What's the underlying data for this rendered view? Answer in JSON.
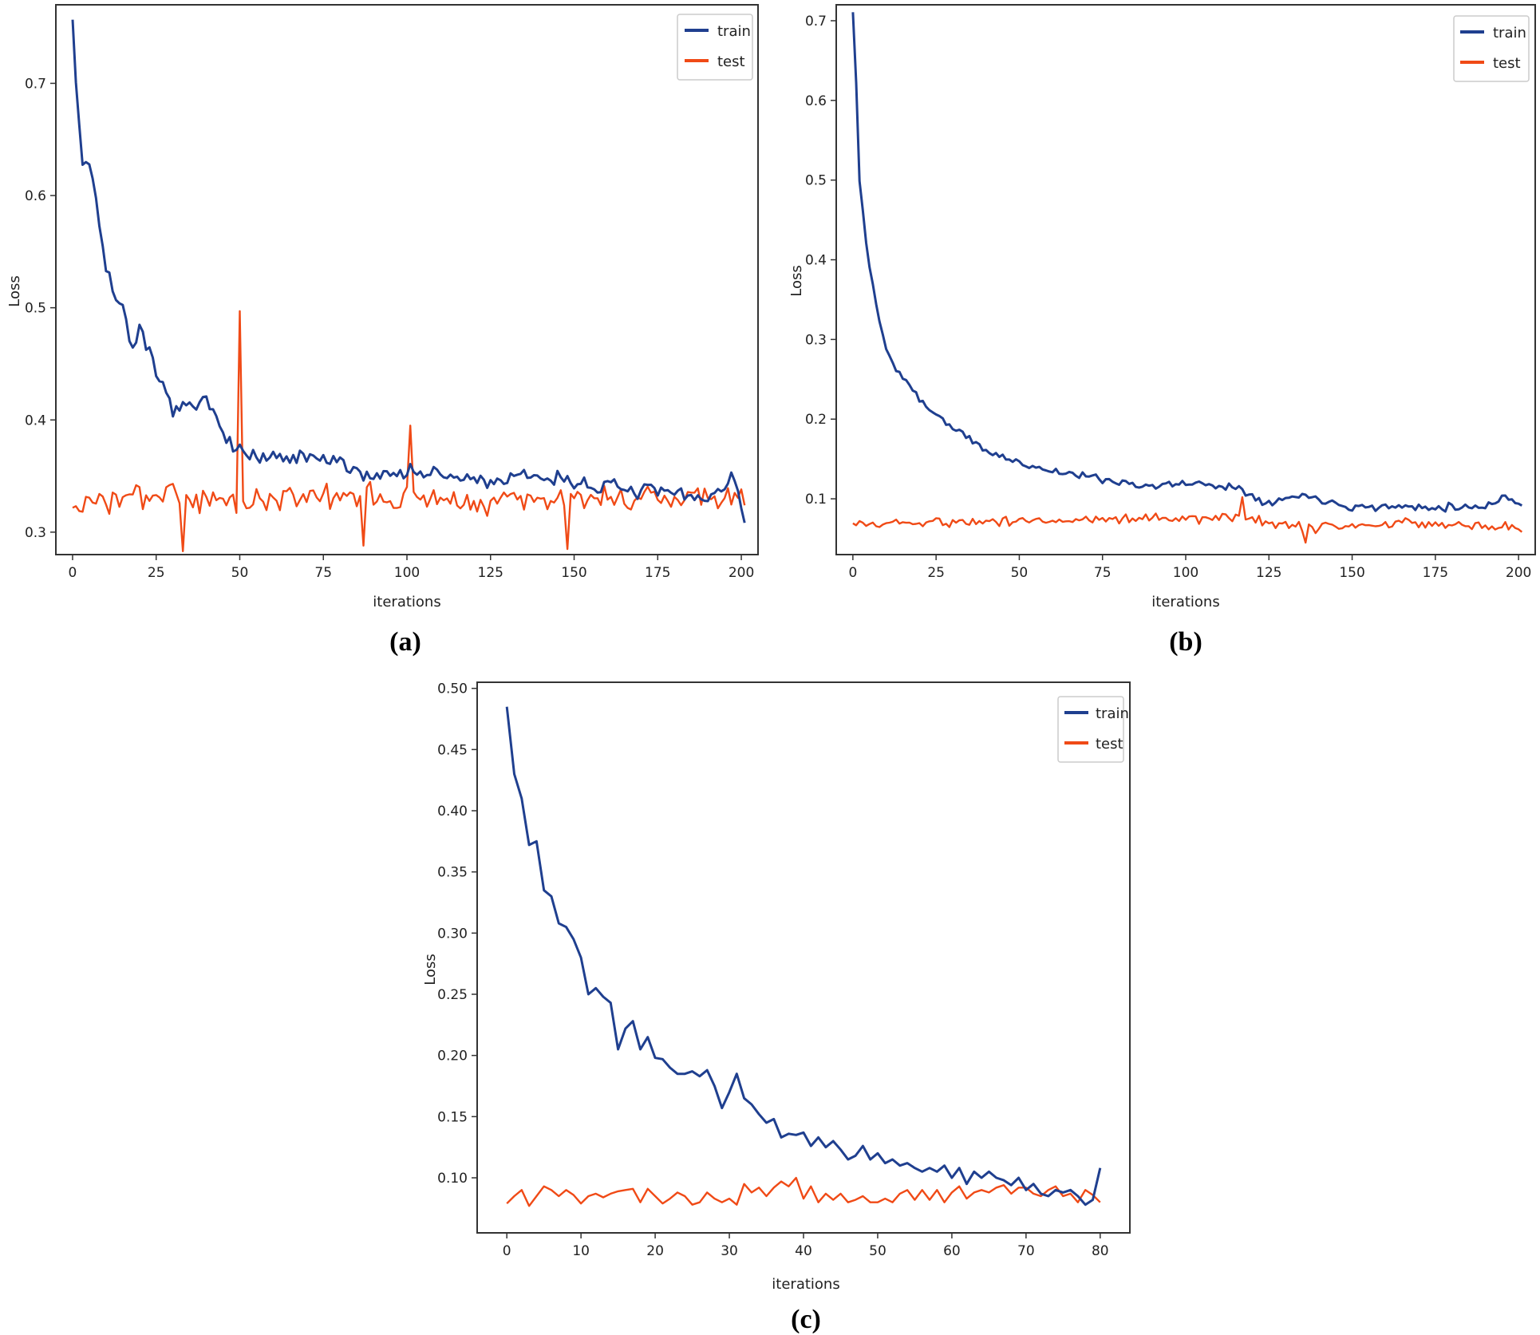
{
  "colors": {
    "train": "#1f3f8f",
    "test": "#f04a16"
  },
  "chart_data": [
    {
      "type": "line",
      "panel_label": "(a)",
      "xlabel": "iterations",
      "ylabel": "Loss",
      "xlim": [
        -5,
        205
      ],
      "ylim": [
        0.28,
        0.77
      ],
      "xticks": [
        0,
        25,
        50,
        75,
        100,
        125,
        150,
        175,
        200
      ],
      "yticks": [
        0.3,
        0.4,
        0.5,
        0.6,
        0.7
      ],
      "ytick_labels": [
        "0.3",
        "0.4",
        "0.5",
        "0.6",
        "0.7"
      ],
      "legend": [
        "train",
        "test"
      ],
      "legend_position": "top-right",
      "x_max": 201,
      "series": [
        {
          "name": "train",
          "color": "#1f3f8f",
          "keypoints": [
            [
              0,
              0.76
            ],
            [
              1,
              0.7
            ],
            [
              3,
              0.63
            ],
            [
              5,
              0.63
            ],
            [
              7,
              0.6
            ],
            [
              10,
              0.53
            ],
            [
              15,
              0.5
            ],
            [
              18,
              0.465
            ],
            [
              20,
              0.48
            ],
            [
              25,
              0.44
            ],
            [
              30,
              0.41
            ],
            [
              35,
              0.41
            ],
            [
              40,
              0.415
            ],
            [
              45,
              0.395
            ],
            [
              48,
              0.375
            ],
            [
              55,
              0.365
            ],
            [
              75,
              0.365
            ],
            [
              90,
              0.35
            ],
            [
              100,
              0.355
            ],
            [
              110,
              0.35
            ],
            [
              125,
              0.345
            ],
            [
              140,
              0.35
            ],
            [
              150,
              0.345
            ],
            [
              160,
              0.34
            ],
            [
              175,
              0.335
            ],
            [
              190,
              0.33
            ],
            [
              198,
              0.35
            ],
            [
              201,
              0.31
            ]
          ],
          "noise": 0.011,
          "seed": 7
        },
        {
          "name": "test",
          "color": "#f04a16",
          "keypoints": [
            [
              0,
              0.325
            ],
            [
              20,
              0.33
            ],
            [
              40,
              0.33
            ],
            [
              60,
              0.33
            ],
            [
              80,
              0.33
            ],
            [
              100,
              0.33
            ],
            [
              120,
              0.33
            ],
            [
              140,
              0.33
            ],
            [
              160,
              0.33
            ],
            [
              180,
              0.33
            ],
            [
              201,
              0.33
            ]
          ],
          "noise": 0.017,
          "seed": 3,
          "spikes": [
            [
              50,
              0.497
            ],
            [
              101,
              0.395
            ],
            [
              33,
              0.283
            ],
            [
              87,
              0.288
            ],
            [
              148,
              0.285
            ]
          ]
        }
      ]
    },
    {
      "type": "line",
      "panel_label": "(b)",
      "xlabel": "iterations",
      "ylabel": "Loss",
      "xlim": [
        -5,
        205
      ],
      "ylim": [
        0.03,
        0.72
      ],
      "xticks": [
        0,
        25,
        50,
        75,
        100,
        125,
        150,
        175,
        200
      ],
      "yticks": [
        0.1,
        0.2,
        0.3,
        0.4,
        0.5,
        0.6,
        0.7
      ],
      "ytick_labels": [
        "0.1",
        "0.2",
        "0.3",
        "0.4",
        "0.5",
        "0.6",
        "0.7"
      ],
      "legend": [
        "train",
        "test"
      ],
      "legend_position": "top-right",
      "x_max": 201,
      "series": [
        {
          "name": "train",
          "color": "#1f3f8f",
          "keypoints": [
            [
              0,
              0.71
            ],
            [
              1,
              0.62
            ],
            [
              2,
              0.5
            ],
            [
              4,
              0.42
            ],
            [
              6,
              0.37
            ],
            [
              8,
              0.32
            ],
            [
              10,
              0.29
            ],
            [
              13,
              0.26
            ],
            [
              16,
              0.25
            ],
            [
              20,
              0.225
            ],
            [
              25,
              0.205
            ],
            [
              30,
              0.19
            ],
            [
              35,
              0.175
            ],
            [
              40,
              0.16
            ],
            [
              50,
              0.145
            ],
            [
              60,
              0.135
            ],
            [
              75,
              0.125
            ],
            [
              90,
              0.115
            ],
            [
              100,
              0.12
            ],
            [
              115,
              0.115
            ],
            [
              125,
              0.095
            ],
            [
              135,
              0.105
            ],
            [
              150,
              0.09
            ],
            [
              175,
              0.09
            ],
            [
              190,
              0.09
            ],
            [
              196,
              0.105
            ],
            [
              201,
              0.09
            ]
          ],
          "noise": 0.007,
          "seed": 11
        },
        {
          "name": "test",
          "color": "#f04a16",
          "keypoints": [
            [
              0,
              0.068
            ],
            [
              50,
              0.073
            ],
            [
              100,
              0.076
            ],
            [
              115,
              0.078
            ],
            [
              125,
              0.068
            ],
            [
              150,
              0.065
            ],
            [
              175,
              0.07
            ],
            [
              201,
              0.063
            ]
          ],
          "noise": 0.01,
          "seed": 5,
          "spikes": [
            [
              117,
              0.102
            ],
            [
              136,
              0.045
            ]
          ]
        }
      ]
    },
    {
      "type": "line",
      "panel_label": "(c)",
      "xlabel": "iterations",
      "ylabel": "Loss",
      "xlim": [
        -4,
        84
      ],
      "ylim": [
        0.055,
        0.505
      ],
      "xticks": [
        0,
        10,
        20,
        30,
        40,
        50,
        60,
        70,
        80
      ],
      "yticks": [
        0.1,
        0.15,
        0.2,
        0.25,
        0.3,
        0.35,
        0.4,
        0.45,
        0.5
      ],
      "ytick_labels": [
        "0.10",
        "0.15",
        "0.20",
        "0.25",
        "0.30",
        "0.35",
        "0.40",
        "0.45",
        "0.50"
      ],
      "legend": [
        "train",
        "test"
      ],
      "legend_position": "top-right",
      "x_max": 80,
      "series": [
        {
          "name": "train",
          "color": "#1f3f8f",
          "values": [
            0.485,
            0.43,
            0.41,
            0.372,
            0.375,
            0.335,
            0.33,
            0.308,
            0.305,
            0.295,
            0.28,
            0.25,
            0.255,
            0.248,
            0.243,
            0.205,
            0.222,
            0.228,
            0.205,
            0.215,
            0.198,
            0.197,
            0.19,
            0.185,
            0.185,
            0.187,
            0.183,
            0.188,
            0.175,
            0.157,
            0.17,
            0.185,
            0.165,
            0.16,
            0.152,
            0.145,
            0.148,
            0.133,
            0.136,
            0.135,
            0.137,
            0.126,
            0.133,
            0.125,
            0.13,
            0.123,
            0.115,
            0.118,
            0.126,
            0.115,
            0.12,
            0.112,
            0.115,
            0.11,
            0.112,
            0.108,
            0.105,
            0.108,
            0.105,
            0.11,
            0.1,
            0.108,
            0.095,
            0.105,
            0.1,
            0.105,
            0.1,
            0.098,
            0.094,
            0.1,
            0.09,
            0.095,
            0.087,
            0.085,
            0.09,
            0.088,
            0.09,
            0.085,
            0.078,
            0.082,
            0.108
          ]
        },
        {
          "name": "test",
          "color": "#f04a16",
          "values": [
            0.079,
            0.085,
            0.09,
            0.077,
            0.085,
            0.093,
            0.09,
            0.085,
            0.09,
            0.086,
            0.079,
            0.085,
            0.087,
            0.084,
            0.087,
            0.089,
            0.09,
            0.091,
            0.08,
            0.091,
            0.085,
            0.079,
            0.083,
            0.088,
            0.085,
            0.078,
            0.08,
            0.088,
            0.083,
            0.08,
            0.083,
            0.078,
            0.095,
            0.088,
            0.092,
            0.085,
            0.092,
            0.097,
            0.093,
            0.1,
            0.083,
            0.093,
            0.08,
            0.087,
            0.082,
            0.087,
            0.08,
            0.082,
            0.085,
            0.08,
            0.08,
            0.083,
            0.08,
            0.087,
            0.09,
            0.082,
            0.09,
            0.082,
            0.09,
            0.08,
            0.088,
            0.093,
            0.083,
            0.088,
            0.09,
            0.088,
            0.092,
            0.094,
            0.087,
            0.092,
            0.092,
            0.087,
            0.085,
            0.09,
            0.093,
            0.085,
            0.087,
            0.08,
            0.09,
            0.086,
            0.08
          ]
        }
      ]
    }
  ]
}
